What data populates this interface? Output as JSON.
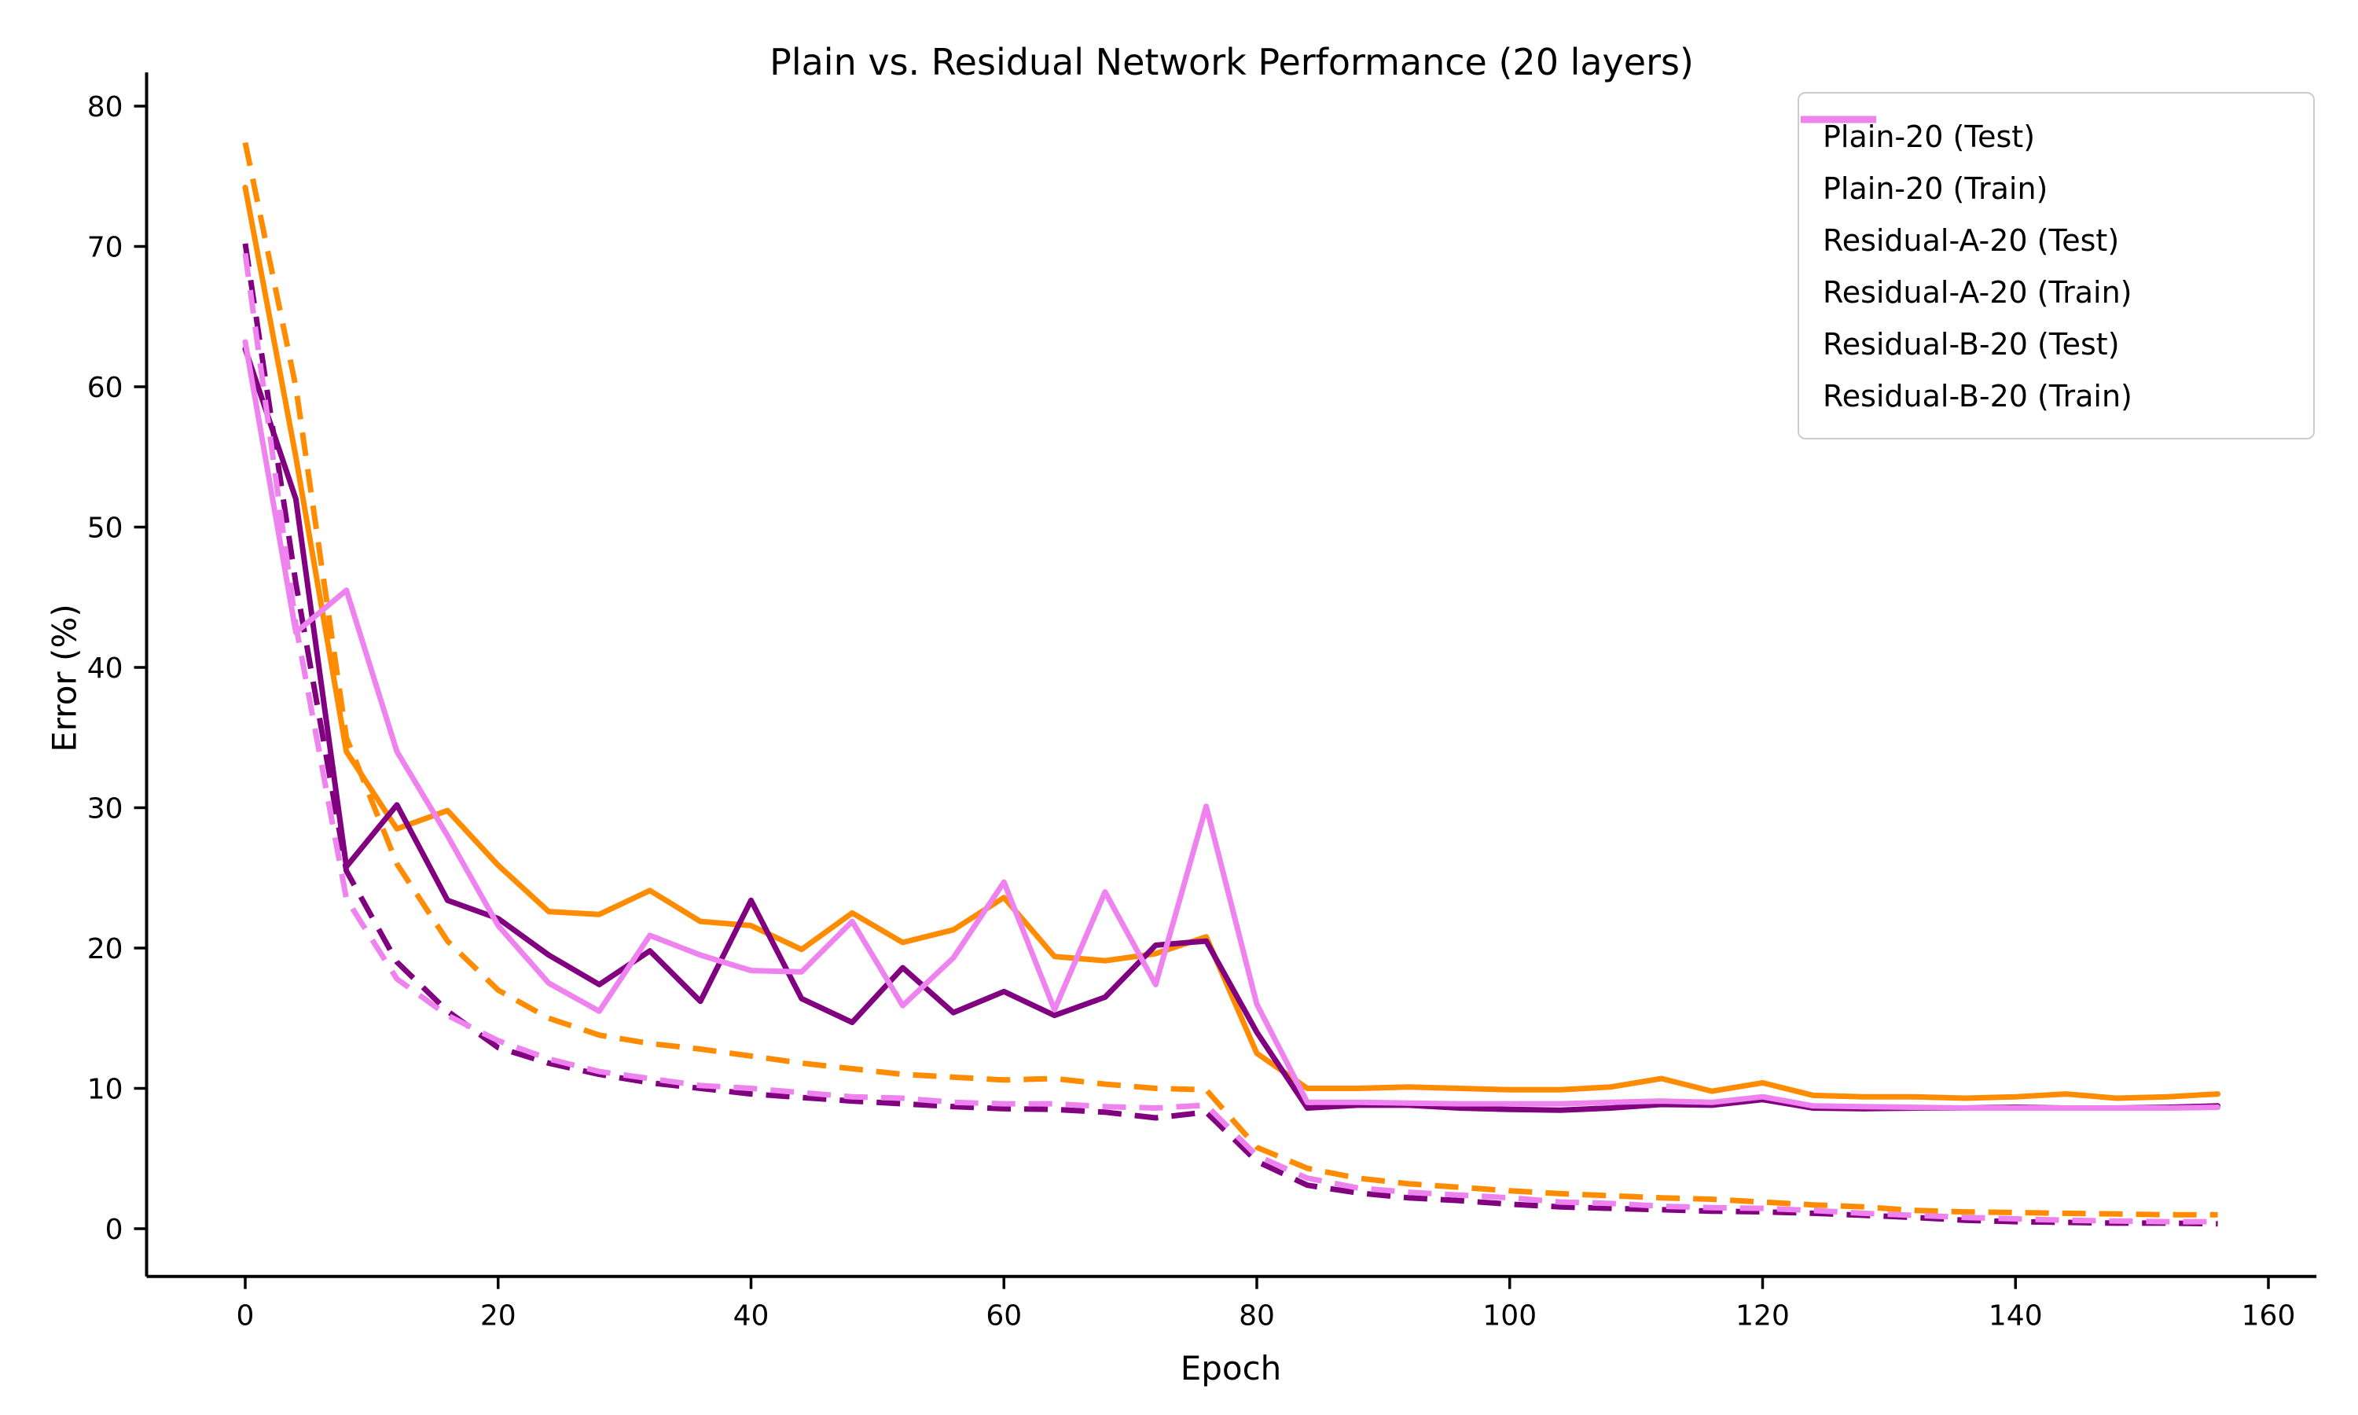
{
  "title": "Plain vs. Residual Network Performance (20 layers)",
  "axes": {
    "xlabel": "Epoch",
    "ylabel": "Error (%)"
  },
  "colors": {
    "plain": "#FF8C00",
    "residual_a": "#800080",
    "residual_b": "#EE82EE",
    "axis": "#000000",
    "legend_border": "#cccccc"
  },
  "chart_data": {
    "type": "line",
    "title": "Plain vs. Residual Network Performance (20 layers)",
    "xlabel": "Epoch",
    "ylabel": "Error (%)",
    "xlim": [
      -7.8,
      163.8
    ],
    "ylim": [
      -3.4,
      82.4
    ],
    "grid": false,
    "legend_position": "upper right",
    "x_ticks": [
      0,
      20,
      40,
      60,
      80,
      100,
      120,
      140,
      160
    ],
    "y_ticks": [
      0,
      10,
      20,
      30,
      40,
      50,
      60,
      70,
      80
    ],
    "x": [
      0,
      4,
      8,
      12,
      16,
      20,
      24,
      28,
      32,
      36,
      40,
      44,
      48,
      52,
      56,
      60,
      64,
      68,
      72,
      76,
      80,
      84,
      88,
      92,
      96,
      100,
      104,
      108,
      112,
      116,
      120,
      124,
      128,
      132,
      136,
      140,
      144,
      148,
      152,
      156
    ],
    "series": [
      {
        "name": "Plain-20 (Test)",
        "color": "#FF8C00",
        "style": "solid",
        "values": [
          74.2,
          55.0,
          34.0,
          28.5,
          29.8,
          25.9,
          22.6,
          22.4,
          24.1,
          21.9,
          21.6,
          19.9,
          22.5,
          20.4,
          21.3,
          23.6,
          19.4,
          19.1,
          19.6,
          20.8,
          12.5,
          10.0,
          10.0,
          10.1,
          10.0,
          9.9,
          9.9,
          10.1,
          10.7,
          9.8,
          10.4,
          9.5,
          9.4,
          9.4,
          9.3,
          9.4,
          9.6,
          9.3,
          9.4,
          9.6
        ]
      },
      {
        "name": "Plain-20 (Train)",
        "color": "#FF8C00",
        "style": "dashed",
        "values": [
          77.4,
          60.0,
          35.0,
          26.0,
          20.5,
          17.0,
          15.0,
          13.8,
          13.2,
          12.8,
          12.3,
          11.8,
          11.4,
          11.0,
          10.8,
          10.6,
          10.7,
          10.3,
          10.0,
          9.9,
          5.8,
          4.3,
          3.6,
          3.2,
          2.95,
          2.7,
          2.5,
          2.35,
          2.2,
          2.1,
          1.9,
          1.7,
          1.55,
          1.3,
          1.2,
          1.15,
          1.1,
          1.05,
          1.0,
          1.0
        ]
      },
      {
        "name": "Residual-A-20 (Test)",
        "color": "#800080",
        "style": "solid",
        "values": [
          62.7,
          52.0,
          25.8,
          30.2,
          23.4,
          22.1,
          19.5,
          17.4,
          19.8,
          16.2,
          23.4,
          16.4,
          14.7,
          18.6,
          15.4,
          16.9,
          15.2,
          16.5,
          20.2,
          20.5,
          14.0,
          8.6,
          8.8,
          8.8,
          8.6,
          8.5,
          8.45,
          8.6,
          8.85,
          8.8,
          9.2,
          8.6,
          8.55,
          8.6,
          8.6,
          8.65,
          8.6,
          8.6,
          8.65,
          8.75
        ]
      },
      {
        "name": "Residual-A-20 (Train)",
        "color": "#800080",
        "style": "dashed",
        "values": [
          70.2,
          46.0,
          25.5,
          19.0,
          15.5,
          12.9,
          11.8,
          11.0,
          10.4,
          10.0,
          9.6,
          9.35,
          9.1,
          8.9,
          8.7,
          8.55,
          8.5,
          8.3,
          7.9,
          8.3,
          4.8,
          3.1,
          2.55,
          2.2,
          2.0,
          1.75,
          1.55,
          1.45,
          1.35,
          1.25,
          1.2,
          1.1,
          0.95,
          0.8,
          0.6,
          0.5,
          0.45,
          0.4,
          0.4,
          0.35
        ]
      },
      {
        "name": "Residual-B-20 (Test)",
        "color": "#EE82EE",
        "style": "solid",
        "values": [
          63.2,
          42.5,
          45.5,
          34.0,
          28.0,
          21.6,
          17.5,
          15.5,
          20.9,
          19.5,
          18.4,
          18.3,
          21.9,
          15.9,
          19.3,
          24.7,
          15.6,
          24.0,
          17.4,
          30.1,
          16.0,
          9.0,
          9.0,
          8.95,
          8.9,
          8.9,
          8.9,
          9.0,
          9.1,
          9.0,
          9.4,
          8.75,
          8.7,
          8.65,
          8.6,
          8.6,
          8.6,
          8.6,
          8.6,
          8.65
        ]
      },
      {
        "name": "Residual-B-20 (Train)",
        "color": "#EE82EE",
        "style": "dashed",
        "values": [
          69.5,
          43.0,
          23.5,
          17.8,
          15.2,
          13.4,
          12.1,
          11.2,
          10.7,
          10.2,
          10.0,
          9.7,
          9.4,
          9.3,
          9.0,
          8.9,
          8.9,
          8.7,
          8.6,
          8.8,
          5.2,
          3.6,
          2.9,
          2.6,
          2.4,
          2.2,
          1.9,
          1.8,
          1.6,
          1.5,
          1.45,
          1.3,
          1.1,
          0.95,
          0.8,
          0.7,
          0.6,
          0.55,
          0.5,
          0.5
        ]
      }
    ]
  }
}
